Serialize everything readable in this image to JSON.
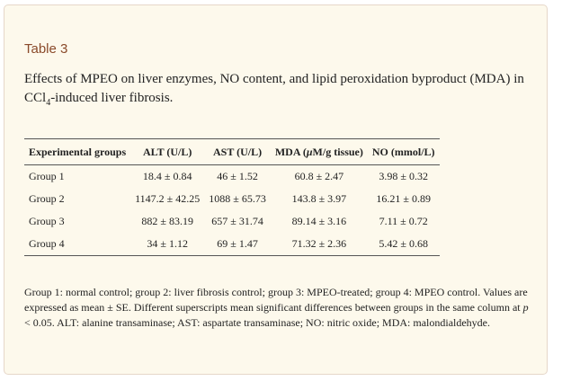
{
  "table_label": "Table 3",
  "caption": {
    "before_sub": "Effects of MPEO on liver enzymes, NO content, and lipid peroxidation byproduct (MDA) in CCl",
    "sub": "4",
    "after_sub": "-induced liver fibrosis."
  },
  "headers": {
    "group": "Experimental groups",
    "alt": "ALT (U/L)",
    "ast": "AST (U/L)",
    "mda_prefix": "MDA (",
    "mda_unit_italic": "μ",
    "mda_suffix": "M/g tissue)",
    "no": "NO (mmol/L)"
  },
  "rows": [
    {
      "group": "Group 1",
      "alt": "18.4 ± 0.84",
      "ast": "46 ± 1.52",
      "mda": "60.8 ± 2.47",
      "no": "3.98 ± 0.32"
    },
    {
      "group": "Group 2",
      "alt": "1147.2 ± 42.25",
      "ast": "1088 ± 65.73",
      "mda": "143.8 ± 3.97",
      "no": "16.21 ± 0.89"
    },
    {
      "group": "Group 3",
      "alt": "882 ± 83.19",
      "ast": "657 ± 31.74",
      "mda": "89.14 ± 3.16",
      "no": "7.11 ± 0.72"
    },
    {
      "group": "Group 4",
      "alt": "34 ± 1.12",
      "ast": "69 ± 1.47",
      "mda": "71.32 ± 2.36",
      "no": "5.42 ± 0.68"
    }
  ],
  "footnote": {
    "part1": "Group 1: normal control; group 2: liver fibrosis control; group 3: MPEO-treated; group 4: MPEO control. Values are expressed as mean ± SE. Different superscripts mean significant differences between groups in the same column at ",
    "p": "p",
    "part2": " < 0.05. ALT: alanine transaminase; AST: aspartate transaminase; NO: nitric oxide; MDA: malondialdehyde."
  }
}
